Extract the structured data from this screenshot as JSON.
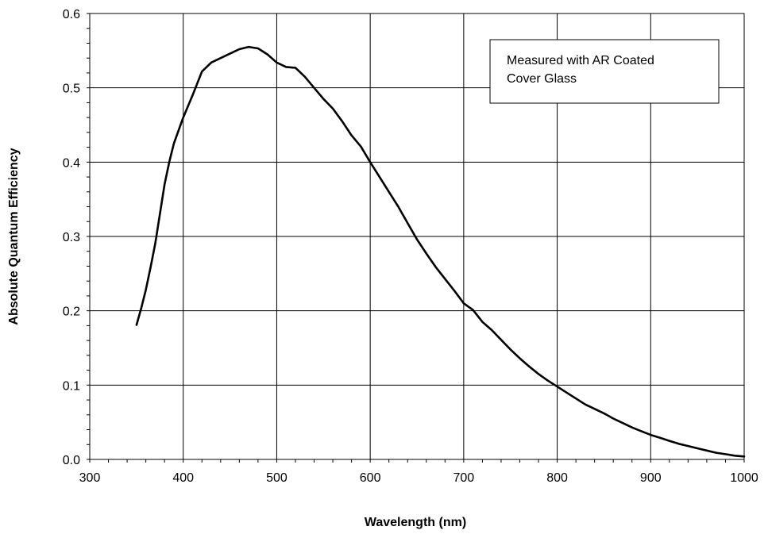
{
  "chart_data": {
    "type": "line",
    "title": "",
    "xlabel": "Wavelength (nm)",
    "ylabel": "Absolute Quantum Efficiency",
    "xlim": [
      300,
      1000
    ],
    "ylim": [
      0.0,
      0.6
    ],
    "x_ticks": [
      300,
      400,
      500,
      600,
      700,
      800,
      900,
      1000
    ],
    "y_ticks": [
      0.0,
      0.1,
      0.2,
      0.3,
      0.4,
      0.5,
      0.6
    ],
    "x_tick_labels": [
      "300",
      "400",
      "500",
      "600",
      "700",
      "800",
      "900",
      "1000"
    ],
    "y_tick_labels": [
      "0.0",
      "0.1",
      "0.2",
      "0.3",
      "0.4",
      "0.5",
      "0.6"
    ],
    "grid": true,
    "annotation": {
      "lines": [
        "Measured with AR Coated",
        "Cover Glass"
      ],
      "placement": "top-right"
    },
    "series": [
      {
        "x": [
          350,
          355,
          360,
          365,
          370,
          375,
          380,
          385,
          390,
          400,
          410,
          420,
          430,
          440,
          450,
          460,
          470,
          480,
          490,
          500,
          510,
          520,
          530,
          540,
          550,
          560,
          570,
          580,
          590,
          600,
          610,
          620,
          630,
          640,
          650,
          660,
          670,
          680,
          690,
          700,
          710,
          720,
          730,
          740,
          750,
          760,
          770,
          780,
          790,
          800,
          810,
          820,
          830,
          840,
          850,
          860,
          870,
          880,
          890,
          900,
          910,
          920,
          930,
          940,
          950,
          960,
          970,
          980,
          990,
          1000
        ],
        "y": [
          0.181,
          0.203,
          0.228,
          0.258,
          0.29,
          0.33,
          0.37,
          0.4,
          0.425,
          0.46,
          0.49,
          0.522,
          0.534,
          0.54,
          0.546,
          0.552,
          0.555,
          0.553,
          0.545,
          0.534,
          0.528,
          0.527,
          0.515,
          0.5,
          0.485,
          0.472,
          0.455,
          0.436,
          0.421,
          0.4,
          0.38,
          0.36,
          0.34,
          0.318,
          0.296,
          0.277,
          0.259,
          0.243,
          0.227,
          0.21,
          0.201,
          0.185,
          0.174,
          0.161,
          0.148,
          0.136,
          0.125,
          0.115,
          0.106,
          0.098,
          0.09,
          0.082,
          0.074,
          0.068,
          0.062,
          0.055,
          0.049,
          0.043,
          0.038,
          0.033,
          0.029,
          0.025,
          0.021,
          0.018,
          0.015,
          0.012,
          0.009,
          0.007,
          0.005,
          0.004
        ]
      }
    ]
  }
}
